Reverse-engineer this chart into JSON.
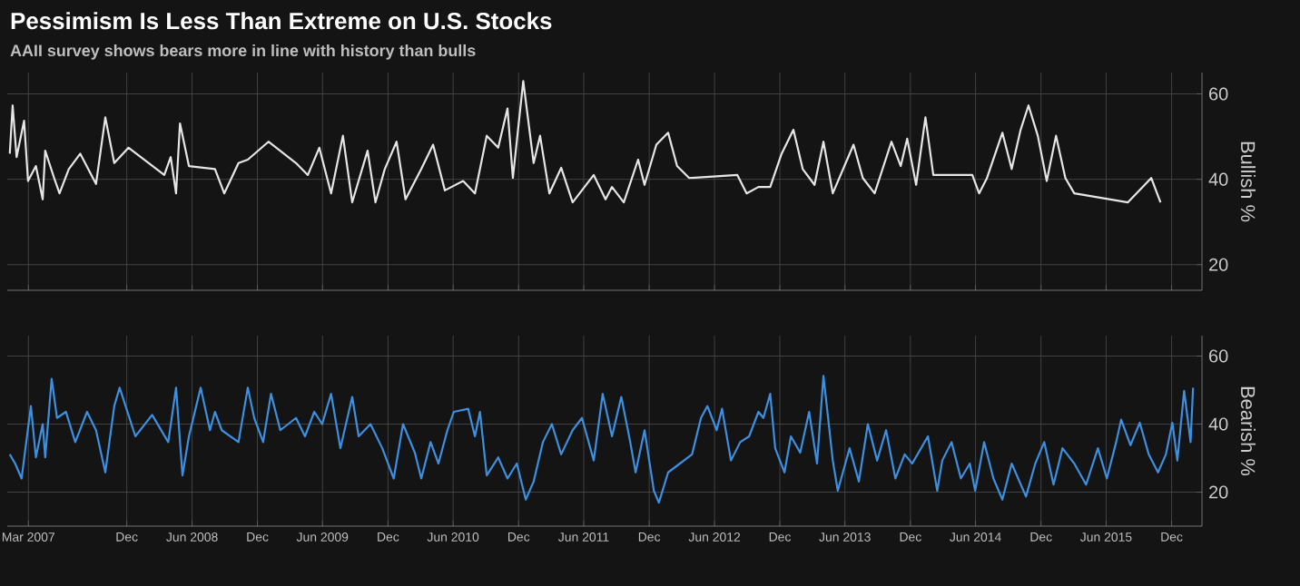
{
  "chart_data": [
    {
      "type": "line",
      "title": "Pessimism Is Less Than Extreme on U.S. Stocks",
      "subtitle": "AAII survey shows bears more in line with history than bulls",
      "ylabel": "Bullish %",
      "color": "#e6e6e6",
      "grid": true,
      "tick_labels": "y",
      "xlim": [
        "2007-01-01",
        "2016-02-24"
      ],
      "ylim": [
        14,
        65
      ],
      "yticks": [
        20,
        40,
        60
      ],
      "xticks": [
        {
          "value": "2007-03-01",
          "label": null
        },
        {
          "value": "2007-12-01",
          "label": null
        },
        {
          "value": "2008-06-01",
          "label": null
        },
        {
          "value": "2008-12-01",
          "label": null
        },
        {
          "value": "2009-06-01",
          "label": null
        },
        {
          "value": "2009-12-01",
          "label": null
        },
        {
          "value": "2010-06-01",
          "label": null
        },
        {
          "value": "2010-12-01",
          "label": null
        },
        {
          "value": "2011-06-01",
          "label": null
        },
        {
          "value": "2011-12-01",
          "label": null
        },
        {
          "value": "2012-06-01",
          "label": null
        },
        {
          "value": "2012-12-01",
          "label": null
        },
        {
          "value": "2013-06-01",
          "label": null
        },
        {
          "value": "2013-12-01",
          "label": null
        },
        {
          "value": "2014-06-01",
          "label": null
        },
        {
          "value": "2014-12-01",
          "label": null
        },
        {
          "value": "2015-06-01",
          "label": null
        },
        {
          "value": "2015-12-01",
          "label": null
        }
      ],
      "x": [
        "2007-01-08",
        "2007-01-16",
        "2007-01-27",
        "2007-02-17",
        "2007-02-28",
        "2007-03-22",
        "2007-04-10",
        "2007-04-17",
        "2007-05-12",
        "2007-05-27",
        "2007-06-22",
        "2007-07-24",
        "2007-09-06",
        "2007-10-02",
        "2007-10-27",
        "2007-12-06",
        "2008-03-15",
        "2008-04-02",
        "2008-04-17",
        "2008-04-28",
        "2008-05-23",
        "2008-08-04",
        "2008-08-30",
        "2008-10-09",
        "2008-11-04",
        "2009-01-01",
        "2009-03-19",
        "2009-04-21",
        "2009-05-23",
        "2009-06-25",
        "2009-07-28",
        "2009-08-23",
        "2009-10-05",
        "2009-10-27",
        "2009-11-22",
        "2009-12-25",
        "2010-01-19",
        "2010-03-04",
        "2010-04-06",
        "2010-05-09",
        "2010-06-29",
        "2010-08-01",
        "2010-09-03",
        "2010-10-05",
        "2010-10-31",
        "2010-11-15",
        "2010-12-14",
        "2011-01-12",
        "2011-01-30",
        "2011-02-25",
        "2011-03-30",
        "2011-05-01",
        "2011-06-29",
        "2011-08-01",
        "2011-08-19",
        "2011-09-21",
        "2011-10-31",
        "2011-11-18",
        "2011-12-21",
        "2012-01-23",
        "2012-02-17",
        "2012-03-22",
        "2012-08-04",
        "2012-08-30",
        "2012-10-02",
        "2012-11-04",
        "2012-12-06",
        "2013-01-08",
        "2013-02-03",
        "2013-03-08",
        "2013-04-02",
        "2013-04-28",
        "2013-06-25",
        "2013-07-21",
        "2013-08-23",
        "2013-10-09",
        "2013-11-04",
        "2013-11-22",
        "2013-12-17",
        "2014-01-12",
        "2014-02-03",
        "2014-05-23",
        "2014-06-11",
        "2014-07-03",
        "2014-08-15",
        "2014-09-10",
        "2014-10-05",
        "2014-10-27",
        "2014-11-22",
        "2014-12-17",
        "2015-01-12",
        "2015-02-07",
        "2015-03-04",
        "2015-08-01",
        "2015-10-05",
        "2015-10-31"
      ],
      "values": [
        46.0,
        57.3,
        45.2,
        53.7,
        39.6,
        43.1,
        35.3,
        46.7,
        40.3,
        36.7,
        42.4,
        46.0,
        38.9,
        54.5,
        43.8,
        47.4,
        41.0,
        45.2,
        36.7,
        53.1,
        43.1,
        42.4,
        36.7,
        43.8,
        44.6,
        48.8,
        43.8,
        41.0,
        47.4,
        36.7,
        50.2,
        34.6,
        46.7,
        34.6,
        42.4,
        48.8,
        35.3,
        42.4,
        48.1,
        37.4,
        39.6,
        36.7,
        50.2,
        47.4,
        56.6,
        40.3,
        63.0,
        43.8,
        50.2,
        36.7,
        42.7,
        34.6,
        41.0,
        35.3,
        38.2,
        34.6,
        44.6,
        38.7,
        48.1,
        50.9,
        43.1,
        40.3,
        41.0,
        36.7,
        38.2,
        38.2,
        46.0,
        51.6,
        42.4,
        38.7,
        48.8,
        36.7,
        48.1,
        40.3,
        36.7,
        48.8,
        43.1,
        49.5,
        38.7,
        54.5,
        41.0,
        41.0,
        36.7,
        40.3,
        50.9,
        42.4,
        51.6,
        57.3,
        50.2,
        39.6,
        50.2,
        40.3,
        36.7,
        34.6,
        40.3,
        34.6
      ]
    },
    {
      "type": "line",
      "ylabel": "Bearish %",
      "color": "#3d8fe0",
      "grid": true,
      "xlim": [
        "2007-01-01",
        "2016-02-24"
      ],
      "ylim": [
        10,
        66
      ],
      "yticks": [
        20,
        40,
        60
      ],
      "xticks": [
        {
          "value": "2007-03-01",
          "label": "Mar 2007"
        },
        {
          "value": "2007-12-01",
          "label": "Dec"
        },
        {
          "value": "2008-06-01",
          "label": "Jun 2008"
        },
        {
          "value": "2008-12-01",
          "label": "Dec"
        },
        {
          "value": "2009-06-01",
          "label": "Jun 2009"
        },
        {
          "value": "2009-12-01",
          "label": "Dec"
        },
        {
          "value": "2010-06-01",
          "label": "Jun 2010"
        },
        {
          "value": "2010-12-01",
          "label": "Dec"
        },
        {
          "value": "2011-06-01",
          "label": "Jun 2011"
        },
        {
          "value": "2011-12-01",
          "label": "Dec"
        },
        {
          "value": "2012-06-01",
          "label": "Jun 2012"
        },
        {
          "value": "2012-12-01",
          "label": "Dec"
        },
        {
          "value": "2013-06-01",
          "label": "Jun 2013"
        },
        {
          "value": "2013-12-01",
          "label": "Dec"
        },
        {
          "value": "2014-06-01",
          "label": "Jun 2014"
        },
        {
          "value": "2014-12-01",
          "label": "Dec"
        },
        {
          "value": "2015-06-01",
          "label": "Jun 2015"
        },
        {
          "value": "2015-12-01",
          "label": "Dec"
        }
      ],
      "x": [
        "2007-01-08",
        "2007-01-23",
        "2007-02-10",
        "2007-03-08",
        "2007-03-22",
        "2007-04-10",
        "2007-04-17",
        "2007-05-05",
        "2007-05-20",
        "2007-06-14",
        "2007-07-10",
        "2007-08-12",
        "2007-09-06",
        "2007-10-02",
        "2007-10-27",
        "2007-11-11",
        "2007-12-25",
        "2008-02-10",
        "2008-03-26",
        "2008-04-17",
        "2008-05-05",
        "2008-05-23",
        "2008-06-25",
        "2008-07-21",
        "2008-08-04",
        "2008-08-23",
        "2008-10-09",
        "2008-11-04",
        "2008-11-22",
        "2008-12-17",
        "2009-01-08",
        "2009-02-03",
        "2009-03-19",
        "2009-04-13",
        "2009-05-09",
        "2009-05-31",
        "2009-06-25",
        "2009-07-21",
        "2009-08-23",
        "2009-09-10",
        "2009-10-13",
        "2009-11-15",
        "2009-12-17",
        "2010-01-12",
        "2010-02-14",
        "2010-03-04",
        "2010-03-30",
        "2010-04-21",
        "2010-05-16",
        "2010-06-03",
        "2010-07-13",
        "2010-08-01",
        "2010-08-15",
        "2010-09-03",
        "2010-10-05",
        "2010-10-31",
        "2010-11-26",
        "2010-12-21",
        "2011-01-12",
        "2011-02-07",
        "2011-03-04",
        "2011-03-30",
        "2011-05-01",
        "2011-05-27",
        "2011-06-29",
        "2011-07-24",
        "2011-08-19",
        "2011-09-14",
        "2011-10-09",
        "2011-10-24",
        "2011-11-18",
        "2011-12-14",
        "2011-12-28",
        "2012-01-23",
        "2012-02-25",
        "2012-03-30",
        "2012-04-24",
        "2012-05-12",
        "2012-06-07",
        "2012-06-22",
        "2012-07-17",
        "2012-08-12",
        "2012-09-06",
        "2012-10-02",
        "2012-10-16",
        "2012-11-04",
        "2012-11-18",
        "2012-12-14",
        "2013-01-01",
        "2013-01-27",
        "2013-02-21",
        "2013-03-15",
        "2013-04-02",
        "2013-04-28",
        "2013-05-12",
        "2013-06-14",
        "2013-07-10",
        "2013-08-04",
        "2013-08-30",
        "2013-09-24",
        "2013-10-20",
        "2013-11-15",
        "2013-12-06",
        "2014-01-19",
        "2014-02-14",
        "2014-02-28",
        "2014-03-26",
        "2014-04-21",
        "2014-05-16",
        "2014-05-31",
        "2014-06-25",
        "2014-07-21",
        "2014-08-15",
        "2014-09-10",
        "2014-10-20",
        "2014-11-15",
        "2014-12-10",
        "2015-01-05",
        "2015-01-30",
        "2015-03-04",
        "2015-04-06",
        "2015-05-09",
        "2015-06-03",
        "2015-06-29",
        "2015-07-13",
        "2015-08-08",
        "2015-09-03",
        "2015-09-28",
        "2015-10-24",
        "2015-11-15",
        "2015-12-03",
        "2015-12-17",
        "2016-01-05",
        "2016-01-23",
        "2016-01-30"
      ],
      "values": [
        31.1,
        28.4,
        24.0,
        45.3,
        30.2,
        40.0,
        30.2,
        53.3,
        41.8,
        43.6,
        34.7,
        43.6,
        38.2,
        25.8,
        45.3,
        50.7,
        36.4,
        42.7,
        34.7,
        50.7,
        24.9,
        36.4,
        50.7,
        38.2,
        43.6,
        38.2,
        34.7,
        50.7,
        41.8,
        34.7,
        48.9,
        38.2,
        41.8,
        36.4,
        43.6,
        40.0,
        48.9,
        32.9,
        48.0,
        36.4,
        40.0,
        32.9,
        24.0,
        40.0,
        31.6,
        24.0,
        34.7,
        28.4,
        38.2,
        43.6,
        44.5,
        36.4,
        43.6,
        24.9,
        30.2,
        24.0,
        28.4,
        17.8,
        23.1,
        34.7,
        40.0,
        31.1,
        38.2,
        41.8,
        29.3,
        48.9,
        36.4,
        48.0,
        34.7,
        25.8,
        38.2,
        20.4,
        16.9,
        25.8,
        28.4,
        31.1,
        41.8,
        45.3,
        38.2,
        44.5,
        29.3,
        34.7,
        36.4,
        43.6,
        41.8,
        48.9,
        32.9,
        25.8,
        36.4,
        31.6,
        43.6,
        28.4,
        54.2,
        29.3,
        20.4,
        32.9,
        23.1,
        40.0,
        29.3,
        38.2,
        24.0,
        31.1,
        28.4,
        36.4,
        20.4,
        29.3,
        34.7,
        24.0,
        28.4,
        20.4,
        34.7,
        24.0,
        17.8,
        28.4,
        18.7,
        28.4,
        34.7,
        22.2,
        32.9,
        28.4,
        22.2,
        32.9,
        24.0,
        34.7,
        41.3,
        33.8,
        40.4,
        31.1,
        25.8,
        31.1,
        40.4,
        29.3,
        49.8,
        34.7,
        50.7
      ]
    }
  ]
}
